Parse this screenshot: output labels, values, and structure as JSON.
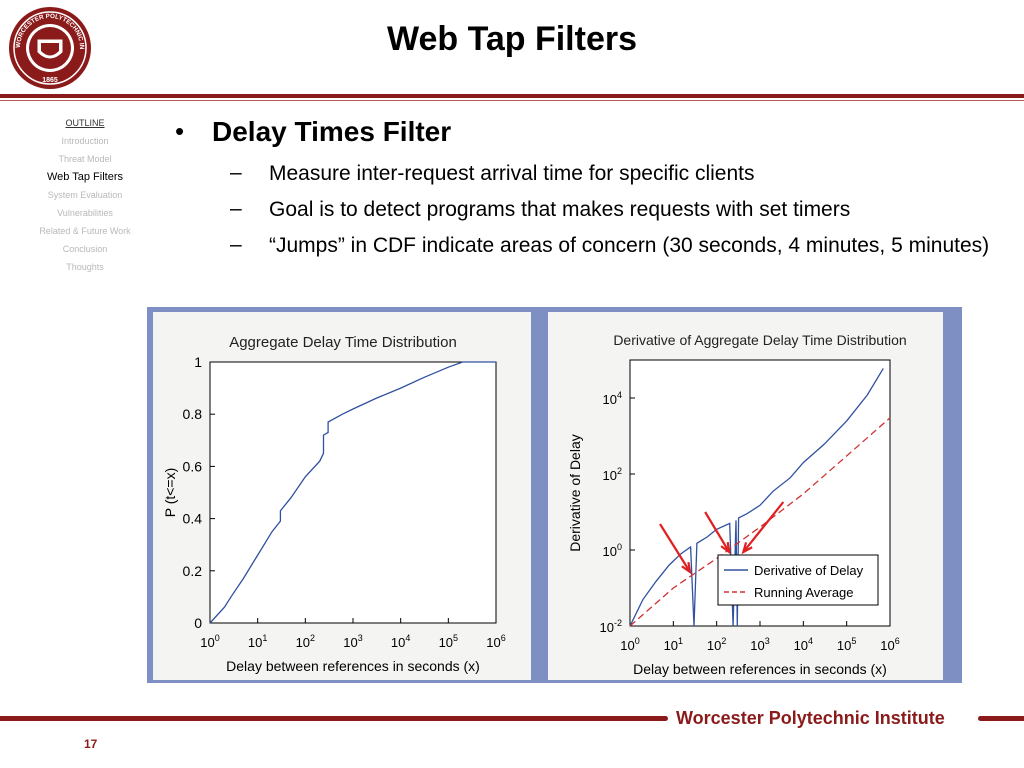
{
  "slide": {
    "title": "Web Tap Filters",
    "page_number": "17",
    "footer": "Worcester Polytechnic Institute"
  },
  "logo": {
    "text_top": "WORCESTER POLYTECHNIC INSTITUTE",
    "year": "1865",
    "colors": {
      "primary": "#8b1a1a",
      "ring": "#ffffff"
    }
  },
  "sidebar": {
    "items": [
      {
        "label": "OUTLINE",
        "state": "header"
      },
      {
        "label": "Introduction",
        "state": "inactive"
      },
      {
        "label": "Threat Model",
        "state": "inactive"
      },
      {
        "label": "Web Tap Filters",
        "state": "active"
      },
      {
        "label": "System Evaluation",
        "state": "inactive"
      },
      {
        "label": "Vulnerabilities",
        "state": "inactive"
      },
      {
        "label": "Related & Future Work",
        "state": "inactive"
      },
      {
        "label": "Conclusion",
        "state": "inactive"
      },
      {
        "label": "Thoughts",
        "state": "inactive"
      }
    ]
  },
  "content": {
    "bullet": "Delay Times Filter",
    "dash": "–",
    "subbullets": [
      "Measure inter-request arrival time for specific clients",
      "Goal is to detect programs that makes requests with set timers",
      "“Jumps” in CDF indicate areas of concern (30 seconds, 4 minutes, 5 minutes)"
    ]
  },
  "chart_data": [
    {
      "type": "line",
      "title": "Aggregate Delay Time Distribution",
      "xlabel": "Delay between references in seconds (x)",
      "ylabel": "P (t<=x)",
      "x_scale": "log",
      "xlim": [
        1,
        1000000
      ],
      "ylim": [
        0,
        1
      ],
      "x_tick_base": "10",
      "x_tick_exponents": [
        "0",
        "1",
        "2",
        "3",
        "4",
        "5",
        "6"
      ],
      "y_ticks": [
        "0",
        "0.2",
        "0.4",
        "0.6",
        "0.8",
        "1"
      ],
      "grid": false,
      "series": [
        {
          "color": "#3050a0",
          "x": [
            1,
            2,
            3,
            5,
            10,
            20,
            30,
            30.01,
            50,
            100,
            200,
            240,
            240.01,
            300,
            300.01,
            600,
            1000,
            3000,
            10000,
            30000,
            100000,
            200000,
            1000000
          ],
          "y": [
            0,
            0.06,
            0.11,
            0.17,
            0.26,
            0.35,
            0.39,
            0.43,
            0.48,
            0.56,
            0.62,
            0.65,
            0.72,
            0.73,
            0.77,
            0.8,
            0.82,
            0.86,
            0.9,
            0.94,
            0.98,
            1.0,
            1.0
          ]
        }
      ]
    },
    {
      "type": "line",
      "title": "Derivative of Aggregate Delay Time Distribution",
      "xlabel": "Delay between references in seconds (x)",
      "ylabel": "Derivative of Delay",
      "x_scale": "log",
      "y_scale": "log",
      "xlim": [
        1,
        1000000
      ],
      "ylim": [
        0.01,
        100000
      ],
      "x_tick_base": "10",
      "x_tick_exponents": [
        "0",
        "1",
        "2",
        "3",
        "4",
        "5",
        "6"
      ],
      "y_tick_base": "10",
      "y_tick_exponents": [
        "-2",
        "0",
        "2",
        "4"
      ],
      "grid": false,
      "legend": {
        "placement": "bottom-right"
      },
      "series": [
        {
          "name": "Derivative of Delay",
          "style": "solid",
          "color": "#3050a0",
          "x": [
            1,
            2,
            4,
            8,
            15,
            25,
            30,
            35,
            60,
            100,
            200,
            240,
            280,
            300,
            320,
            500,
            1000,
            2000,
            5000,
            10000,
            30000,
            100000,
            300000,
            700000
          ],
          "y": [
            0.01,
            0.05,
            0.15,
            0.4,
            0.8,
            1.2,
            0.01,
            1.5,
            2.2,
            3.5,
            5,
            0.01,
            6,
            0.01,
            7,
            9,
            15,
            35,
            80,
            200,
            600,
            2500,
            12000,
            60000
          ]
        },
        {
          "name": "Running Average",
          "style": "dashed",
          "color": "#d03030",
          "x": [
            1,
            10,
            100,
            1000,
            10000,
            100000,
            1000000
          ],
          "y": [
            0.01,
            0.1,
            0.6,
            4,
            30,
            300,
            3000
          ]
        }
      ],
      "annotations": [
        {
          "type": "arrow",
          "color": "#e02020",
          "points_to_x": 30
        },
        {
          "type": "arrow",
          "color": "#e02020",
          "points_to_x": 240
        },
        {
          "type": "arrow",
          "color": "#e02020",
          "points_to_x": 300
        }
      ]
    }
  ]
}
